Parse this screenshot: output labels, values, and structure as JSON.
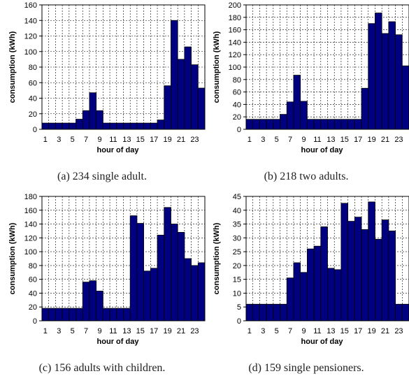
{
  "chart_data": [
    {
      "type": "bar",
      "caption": "(a) 234 single adult.",
      "xlabel": "hour of day",
      "ylabel": "consumption (kWh)",
      "ylim": [
        0,
        160
      ],
      "yticks": [
        0,
        20,
        40,
        60,
        80,
        100,
        120,
        140,
        160
      ],
      "categories": [
        1,
        2,
        3,
        4,
        5,
        6,
        7,
        8,
        9,
        10,
        11,
        12,
        13,
        14,
        15,
        16,
        17,
        18,
        19,
        20,
        21,
        22,
        23,
        24
      ],
      "xtick_labels": [
        "1",
        "3",
        "5",
        "7",
        "9",
        "11",
        "13",
        "15",
        "17",
        "19",
        "21",
        "23"
      ],
      "values": [
        8,
        8,
        8,
        8,
        8,
        13,
        24,
        47,
        24,
        8,
        8,
        8,
        8,
        8,
        8,
        8,
        8,
        12,
        56,
        140,
        90,
        106,
        83,
        53
      ],
      "grid": true,
      "color": "#000080"
    },
    {
      "type": "bar",
      "caption": "(b) 218 two adults.",
      "xlabel": "hour of day",
      "ylabel": "consumption (kWh)",
      "ylim": [
        0,
        200
      ],
      "yticks": [
        0,
        20,
        40,
        60,
        80,
        100,
        120,
        140,
        160,
        180,
        200
      ],
      "categories": [
        1,
        2,
        3,
        4,
        5,
        6,
        7,
        8,
        9,
        10,
        11,
        12,
        13,
        14,
        15,
        16,
        17,
        18,
        19,
        20,
        21,
        22,
        23,
        24
      ],
      "xtick_labels": [
        "1",
        "3",
        "5",
        "7",
        "9",
        "11",
        "13",
        "15",
        "17",
        "19",
        "21",
        "23"
      ],
      "values": [
        16,
        16,
        16,
        16,
        16,
        24,
        44,
        87,
        45,
        16,
        16,
        16,
        16,
        16,
        16,
        16,
        16,
        66,
        170,
        187,
        154,
        173,
        152,
        102
      ],
      "grid": true,
      "color": "#000080"
    },
    {
      "type": "bar",
      "caption": "(c) 156 adults with children.",
      "xlabel": "hour of day",
      "ylabel": "consumption (kWh)",
      "ylim": [
        0,
        180
      ],
      "yticks": [
        0,
        20,
        40,
        60,
        80,
        100,
        120,
        140,
        160,
        180
      ],
      "categories": [
        1,
        2,
        3,
        4,
        5,
        6,
        7,
        8,
        9,
        10,
        11,
        12,
        13,
        14,
        15,
        16,
        17,
        18,
        19,
        20,
        21,
        22,
        23,
        24
      ],
      "xtick_labels": [
        "1",
        "3",
        "5",
        "7",
        "9",
        "11",
        "13",
        "15",
        "17",
        "19",
        "21",
        "23"
      ],
      "values": [
        18,
        18,
        18,
        18,
        18,
        18,
        56,
        58,
        43,
        18,
        18,
        18,
        18,
        152,
        141,
        72,
        76,
        124,
        164,
        140,
        128,
        90,
        80,
        84
      ],
      "grid": true,
      "color": "#000080"
    },
    {
      "type": "bar",
      "caption": "(d) 159 single pensioners.",
      "xlabel": "hour of day",
      "ylabel": "consumption (kWh)",
      "ylim": [
        0,
        45
      ],
      "yticks": [
        0,
        5,
        10,
        15,
        20,
        25,
        30,
        35,
        40,
        45
      ],
      "categories": [
        1,
        2,
        3,
        4,
        5,
        6,
        7,
        8,
        9,
        10,
        11,
        12,
        13,
        14,
        15,
        16,
        17,
        18,
        19,
        20,
        21,
        22,
        23,
        24
      ],
      "xtick_labels": [
        "1",
        "3",
        "5",
        "7",
        "9",
        "11",
        "13",
        "15",
        "17",
        "19",
        "21",
        "23"
      ],
      "values": [
        6,
        6,
        6,
        6,
        6,
        6,
        15.5,
        21,
        17.5,
        26,
        27,
        34,
        19,
        18.5,
        42.5,
        36,
        37.5,
        33,
        43,
        29.5,
        36.5,
        32.5,
        6,
        6
      ],
      "grid": true,
      "color": "#000080"
    }
  ]
}
